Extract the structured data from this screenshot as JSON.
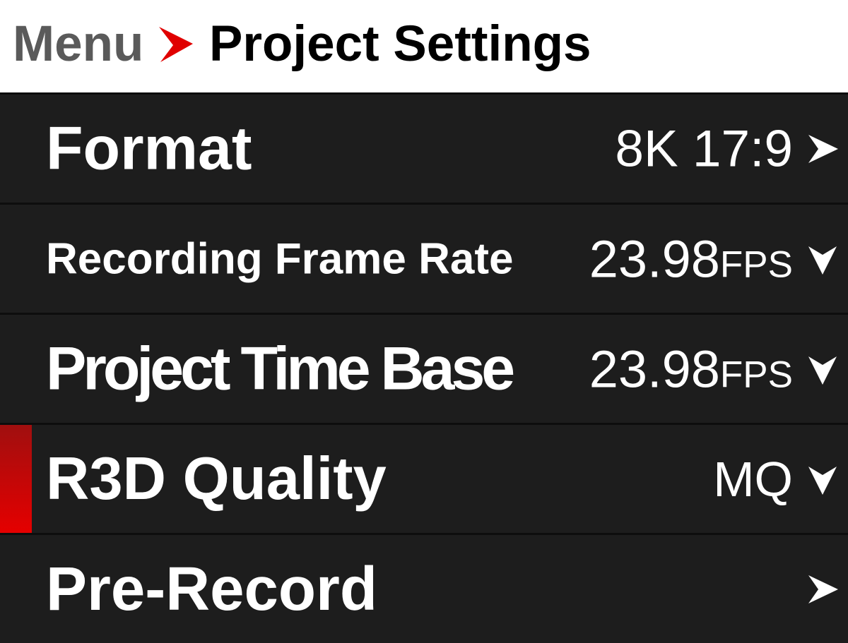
{
  "header": {
    "breadcrumb_root": "Menu",
    "title": "Project Settings",
    "separator_icon": "chevron-right-icon",
    "separator_color": "#e00000"
  },
  "accent_color": "#e00000",
  "items": [
    {
      "label": "Format",
      "value": "8K 17:9",
      "unit": "",
      "icon": "chevron-right-icon",
      "selected": false
    },
    {
      "label": "Recording Frame Rate",
      "value": "23.98",
      "unit": "FPS",
      "icon": "chevron-down-icon",
      "selected": false
    },
    {
      "label": "Project Time Base",
      "value": "23.98",
      "unit": "FPS",
      "icon": "chevron-down-icon",
      "selected": false
    },
    {
      "label": "R3D Quality",
      "value": "MQ",
      "unit": "",
      "icon": "chevron-down-icon",
      "selected": true
    },
    {
      "label": "Pre-Record",
      "value": "",
      "unit": "",
      "icon": "chevron-right-icon",
      "selected": false
    }
  ]
}
